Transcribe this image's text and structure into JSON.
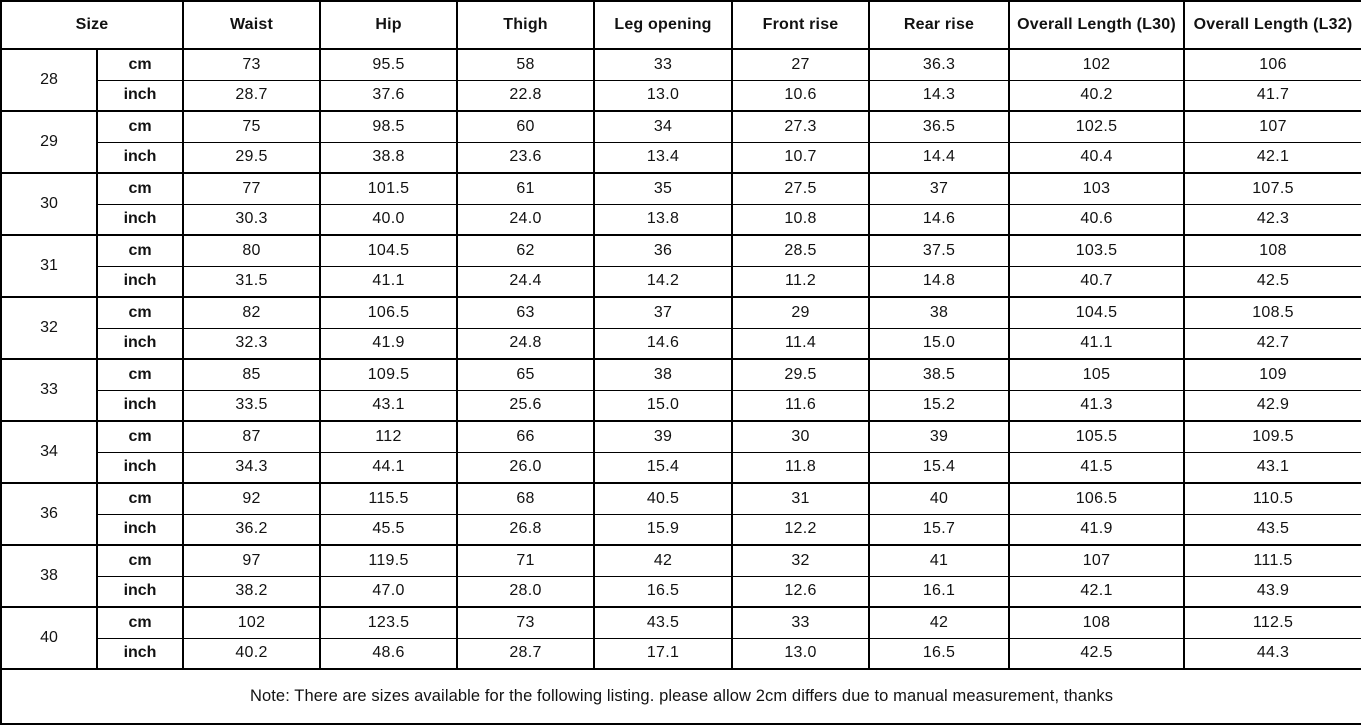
{
  "table": {
    "headers": [
      "Size",
      "Waist",
      "Hip",
      "Thigh",
      "Leg opening",
      "Front rise",
      "Rear rise",
      "Overall Length (L30)",
      "Overall Length (L32)"
    ],
    "unit_labels": [
      "cm",
      "inch"
    ],
    "rows": [
      {
        "size": "28",
        "cm": [
          "73",
          "95.5",
          "58",
          "33",
          "27",
          "36.3",
          "102",
          "106"
        ],
        "inch": [
          "28.7",
          "37.6",
          "22.8",
          "13.0",
          "10.6",
          "14.3",
          "40.2",
          "41.7"
        ]
      },
      {
        "size": "29",
        "cm": [
          "75",
          "98.5",
          "60",
          "34",
          "27.3",
          "36.5",
          "102.5",
          "107"
        ],
        "inch": [
          "29.5",
          "38.8",
          "23.6",
          "13.4",
          "10.7",
          "14.4",
          "40.4",
          "42.1"
        ]
      },
      {
        "size": "30",
        "cm": [
          "77",
          "101.5",
          "61",
          "35",
          "27.5",
          "37",
          "103",
          "107.5"
        ],
        "inch": [
          "30.3",
          "40.0",
          "24.0",
          "13.8",
          "10.8",
          "14.6",
          "40.6",
          "42.3"
        ]
      },
      {
        "size": "31",
        "cm": [
          "80",
          "104.5",
          "62",
          "36",
          "28.5",
          "37.5",
          "103.5",
          "108"
        ],
        "inch": [
          "31.5",
          "41.1",
          "24.4",
          "14.2",
          "11.2",
          "14.8",
          "40.7",
          "42.5"
        ]
      },
      {
        "size": "32",
        "cm": [
          "82",
          "106.5",
          "63",
          "37",
          "29",
          "38",
          "104.5",
          "108.5"
        ],
        "inch": [
          "32.3",
          "41.9",
          "24.8",
          "14.6",
          "11.4",
          "15.0",
          "41.1",
          "42.7"
        ]
      },
      {
        "size": "33",
        "cm": [
          "85",
          "109.5",
          "65",
          "38",
          "29.5",
          "38.5",
          "105",
          "109"
        ],
        "inch": [
          "33.5",
          "43.1",
          "25.6",
          "15.0",
          "11.6",
          "15.2",
          "41.3",
          "42.9"
        ]
      },
      {
        "size": "34",
        "cm": [
          "87",
          "112",
          "66",
          "39",
          "30",
          "39",
          "105.5",
          "109.5"
        ],
        "inch": [
          "34.3",
          "44.1",
          "26.0",
          "15.4",
          "11.8",
          "15.4",
          "41.5",
          "43.1"
        ]
      },
      {
        "size": "36",
        "cm": [
          "92",
          "115.5",
          "68",
          "40.5",
          "31",
          "40",
          "106.5",
          "110.5"
        ],
        "inch": [
          "36.2",
          "45.5",
          "26.8",
          "15.9",
          "12.2",
          "15.7",
          "41.9",
          "43.5"
        ]
      },
      {
        "size": "38",
        "cm": [
          "97",
          "119.5",
          "71",
          "42",
          "32",
          "41",
          "107",
          "111.5"
        ],
        "inch": [
          "38.2",
          "47.0",
          "28.0",
          "16.5",
          "12.6",
          "16.1",
          "42.1",
          "43.9"
        ]
      },
      {
        "size": "40",
        "cm": [
          "102",
          "123.5",
          "73",
          "43.5",
          "33",
          "42",
          "108",
          "112.5"
        ],
        "inch": [
          "40.2",
          "48.6",
          "28.7",
          "17.1",
          "13.0",
          "16.5",
          "42.5",
          "44.3"
        ]
      }
    ],
    "note": "Note: There are sizes available for the following listing. please allow 2cm differs due to manual measurement, thanks"
  }
}
